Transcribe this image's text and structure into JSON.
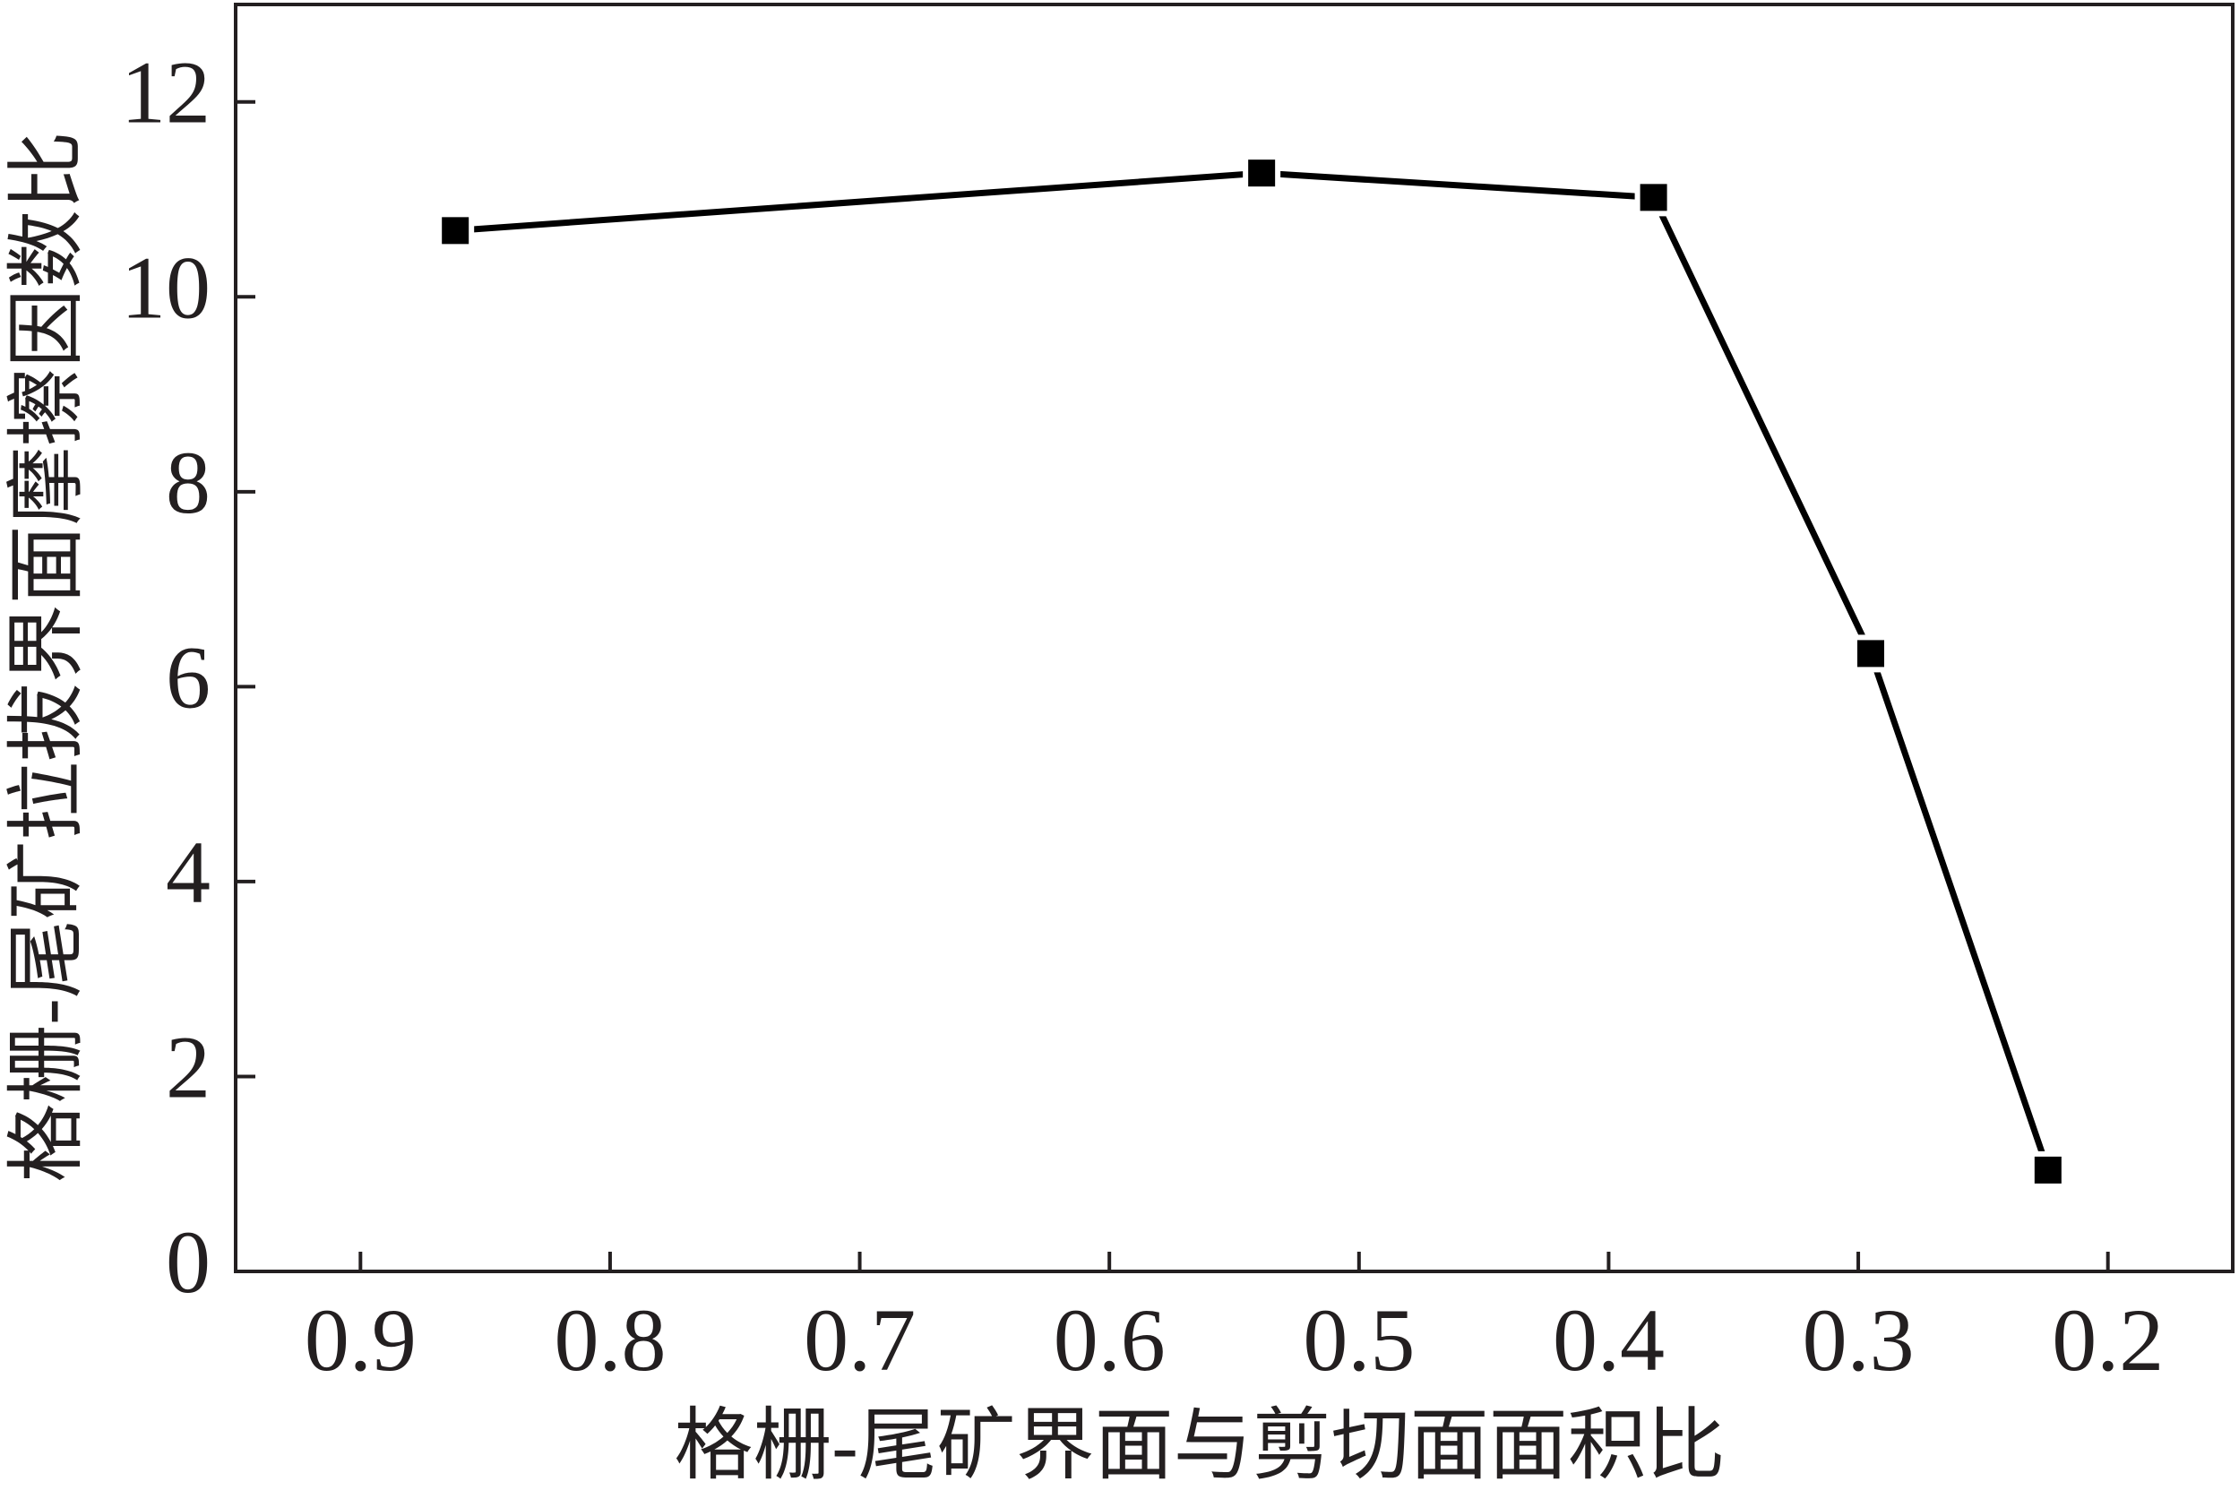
{
  "chart_data": {
    "type": "line",
    "x_label": "格栅-尾矿界面与剪切面面积比",
    "y_label": "格栅-尾矿拉拔界面摩擦因数比",
    "x": [
      0.862,
      0.539,
      0.382,
      0.295,
      0.224
    ],
    "series": [
      {
        "color": "#000000",
        "values": [
          10.68,
          11.27,
          11.02,
          6.34,
          1.04
        ]
      }
    ],
    "xlim": [
      0.95,
      0.15
    ],
    "xticks": [
      0.9,
      0.8,
      0.7,
      0.6,
      0.5,
      0.4,
      0.3,
      0.2
    ],
    "ylim": [
      0,
      13
    ],
    "yticks": [
      0,
      2,
      4,
      6,
      8,
      10,
      12
    ]
  }
}
